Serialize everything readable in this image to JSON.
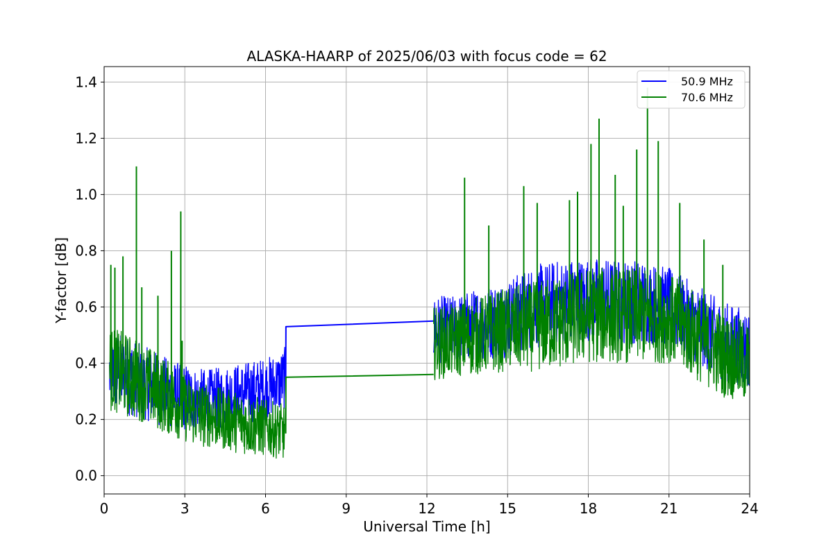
{
  "chart_data": {
    "type": "line",
    "title": "ALASKA-HAARP of 2025/06/03 with focus code = 62",
    "xlabel": "Universal Time [h]",
    "ylabel": "Y-factor [dB]",
    "xlim": [
      0,
      24
    ],
    "ylim": [
      -0.065,
      1.455
    ],
    "xticks": [
      0,
      3,
      6,
      9,
      12,
      15,
      18,
      21,
      24
    ],
    "xtick_labels": [
      "0",
      "3",
      "6",
      "9",
      "12",
      "15",
      "18",
      "21",
      "24"
    ],
    "yticks": [
      0.0,
      0.2,
      0.4,
      0.6,
      0.8,
      1.0,
      1.2,
      1.4
    ],
    "ytick_labels": [
      "0.0",
      "0.2",
      "0.4",
      "0.6",
      "0.8",
      "1.0",
      "1.2",
      "1.4"
    ],
    "grid": true,
    "legend_position": "top-right",
    "series": [
      {
        "name": "50.9 MHz",
        "color": "#0000ff",
        "segments": [
          {
            "x": [
              0.2,
              0.5,
              1.0,
              1.5,
              2.0,
              2.5,
              3.0,
              3.5,
              4.0,
              4.5,
              5.0,
              5.5,
              6.0,
              6.5,
              6.75
            ],
            "y": [
              0.36,
              0.37,
              0.35,
              0.33,
              0.31,
              0.29,
              0.28,
              0.27,
              0.27,
              0.28,
              0.29,
              0.3,
              0.31,
              0.33,
              0.35
            ],
            "spread": [
              0.14,
              0.14,
              0.14,
              0.13,
              0.13,
              0.12,
              0.12,
              0.11,
              0.11,
              0.11,
              0.11,
              0.11,
              0.11,
              0.11,
              0.11
            ]
          },
          {
            "x": [
              6.75,
              6.76,
              12.25
            ],
            "y": [
              0.35,
              0.53,
              0.55
            ]
          },
          {
            "x": [
              12.25,
              13.0,
              14.0,
              15.0,
              16.0,
              17.0,
              18.0,
              19.0,
              20.0,
              21.0,
              22.0,
              23.0,
              24.0
            ],
            "y": [
              0.52,
              0.52,
              0.54,
              0.56,
              0.6,
              0.62,
              0.63,
              0.62,
              0.62,
              0.6,
              0.54,
              0.48,
              0.45
            ],
            "spread": [
              0.12,
              0.12,
              0.13,
              0.14,
              0.15,
              0.15,
              0.15,
              0.15,
              0.15,
              0.14,
              0.14,
              0.14,
              0.14
            ]
          }
        ]
      },
      {
        "name": "70.6 MHz",
        "color": "#008000",
        "segments": [
          {
            "x": [
              0.2,
              0.5,
              1.0,
              1.5,
              2.0,
              2.5,
              3.0,
              3.5,
              4.0,
              4.5,
              5.0,
              5.5,
              6.0,
              6.5,
              6.75
            ],
            "y": [
              0.38,
              0.37,
              0.35,
              0.33,
              0.3,
              0.27,
              0.24,
              0.22,
              0.21,
              0.2,
              0.19,
              0.18,
              0.17,
              0.16,
              0.15
            ],
            "spread": [
              0.15,
              0.15,
              0.15,
              0.14,
              0.14,
              0.13,
              0.12,
              0.12,
              0.11,
              0.11,
              0.11,
              0.11,
              0.1,
              0.1,
              0.1
            ]
          },
          {
            "x": [
              6.75,
              6.76,
              12.25
            ],
            "y": [
              0.15,
              0.35,
              0.36
            ]
          },
          {
            "x": [
              12.25,
              13.0,
              14.0,
              15.0,
              16.0,
              17.0,
              18.0,
              19.0,
              20.0,
              21.0,
              22.0,
              23.0,
              24.0
            ],
            "y": [
              0.47,
              0.48,
              0.5,
              0.52,
              0.53,
              0.55,
              0.57,
              0.57,
              0.57,
              0.56,
              0.5,
              0.43,
              0.4
            ],
            "spread": [
              0.13,
              0.13,
              0.14,
              0.15,
              0.16,
              0.17,
              0.17,
              0.17,
              0.17,
              0.16,
              0.16,
              0.15,
              0.15
            ]
          }
        ],
        "spikes": [
          {
            "x": 0.25,
            "y": 0.75
          },
          {
            "x": 0.4,
            "y": 0.74
          },
          {
            "x": 0.7,
            "y": 0.78
          },
          {
            "x": 1.2,
            "y": 1.1
          },
          {
            "x": 1.4,
            "y": 0.67
          },
          {
            "x": 2.0,
            "y": 0.64
          },
          {
            "x": 2.5,
            "y": 0.8
          },
          {
            "x": 2.85,
            "y": 0.94
          },
          {
            "x": 2.9,
            "y": 0.48
          },
          {
            "x": 13.4,
            "y": 1.06
          },
          {
            "x": 14.3,
            "y": 0.89
          },
          {
            "x": 15.6,
            "y": 1.03
          },
          {
            "x": 16.1,
            "y": 0.97
          },
          {
            "x": 17.3,
            "y": 0.98
          },
          {
            "x": 17.6,
            "y": 1.01
          },
          {
            "x": 18.1,
            "y": 1.18
          },
          {
            "x": 18.4,
            "y": 1.27
          },
          {
            "x": 19.0,
            "y": 1.07
          },
          {
            "x": 19.3,
            "y": 0.96
          },
          {
            "x": 19.8,
            "y": 1.16
          },
          {
            "x": 20.2,
            "y": 1.38
          },
          {
            "x": 20.6,
            "y": 1.19
          },
          {
            "x": 21.4,
            "y": 0.97
          },
          {
            "x": 22.3,
            "y": 0.84
          },
          {
            "x": 23.0,
            "y": 0.75
          }
        ]
      }
    ]
  }
}
